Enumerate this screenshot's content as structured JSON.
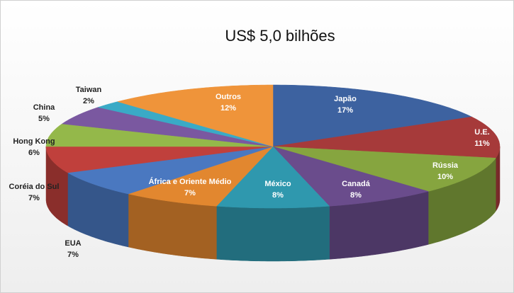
{
  "chart_data": {
    "type": "pie3d",
    "title": "US$ 5,0 bilhões",
    "categories": [
      "Japão",
      "U.E.",
      "Rússia",
      "Canadá",
      "México",
      "África e Oriente Médio",
      "EUA",
      "Coréia do Sul",
      "Hong Kong",
      "China",
      "Taiwan",
      "Outros"
    ],
    "values": [
      17,
      11,
      10,
      8,
      8,
      7,
      7,
      7,
      6,
      5,
      2,
      12
    ],
    "value_labels": [
      "17%",
      "11%",
      "10%",
      "8%",
      "8%",
      "7%",
      "7%",
      "7%",
      "6%",
      "5%",
      "2%",
      "12%"
    ],
    "colors": [
      "#3d62a0",
      "#a63a3a",
      "#86a53f",
      "#6a4c8c",
      "#2f98ae",
      "#e2872f",
      "#4a78c0",
      "#c0403c",
      "#94b84a",
      "#7a58a0",
      "#3aaac6",
      "#ef943a"
    ]
  }
}
